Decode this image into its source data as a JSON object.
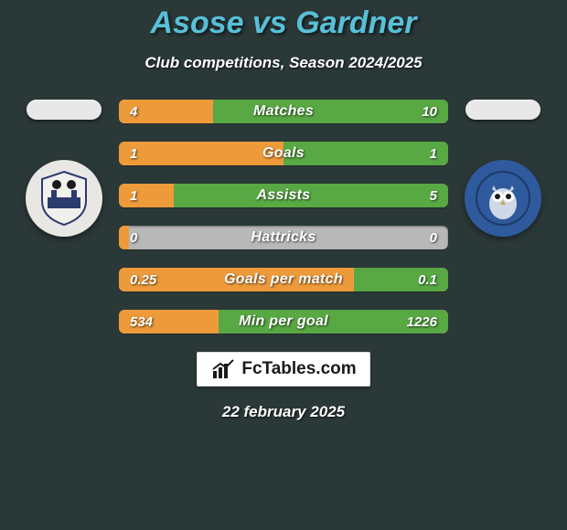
{
  "title": "Asose vs Gardner",
  "subtitle": "Club competitions, Season 2024/2025",
  "date": "22 february 2025",
  "brand_text": "FcTables.com",
  "colors": {
    "background": "#2b3838",
    "title": "#58c0d8",
    "left_fill": "#ed9a3a",
    "right_fill": "#58a844",
    "bar_bg": "#b8b8b8"
  },
  "crest_left": {
    "bg": "#e8e7e4",
    "accent": "#2c3a6e"
  },
  "crest_right": {
    "bg": "#2f5a9e",
    "accent": "#9eb7d6"
  },
  "bars": [
    {
      "label": "Matches",
      "left": "4",
      "right": "10",
      "left_pct": 28.6,
      "right_pct": 71.4
    },
    {
      "label": "Goals",
      "left": "1",
      "right": "1",
      "left_pct": 50.0,
      "right_pct": 50.0
    },
    {
      "label": "Assists",
      "left": "1",
      "right": "5",
      "left_pct": 16.7,
      "right_pct": 83.3
    },
    {
      "label": "Hattricks",
      "left": "0",
      "right": "0",
      "left_pct": 3.0,
      "right_pct": 0.0
    },
    {
      "label": "Goals per match",
      "left": "0.25",
      "right": "0.1",
      "left_pct": 71.4,
      "right_pct": 28.6
    },
    {
      "label": "Min per goal",
      "left": "534",
      "right": "1226",
      "left_pct": 30.3,
      "right_pct": 69.7
    }
  ]
}
